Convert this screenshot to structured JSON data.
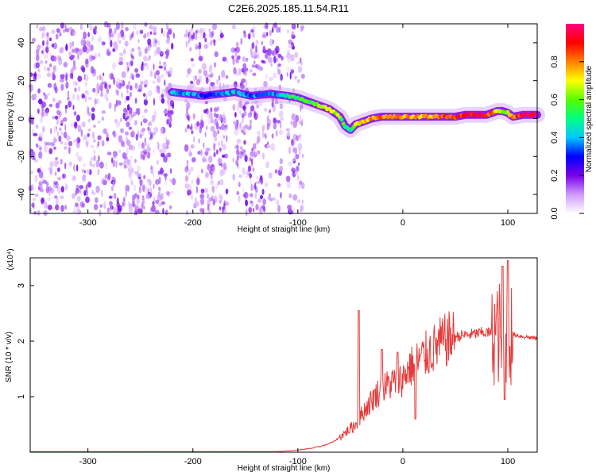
{
  "chart_data": [
    {
      "type": "heatmap",
      "title": "C2E6.2025.185.11.54.R11",
      "xlabel": "Height of straight line (km)",
      "ylabel": "Frequency (Hz)",
      "xlim": [
        -355,
        128
      ],
      "ylim": [
        -50,
        50
      ],
      "x_ticks": [
        -300,
        -200,
        -100,
        0,
        100
      ],
      "y_ticks": [
        -40,
        -20,
        0,
        20,
        40
      ],
      "colorbar": {
        "label": "Normalized spectral amplitude",
        "range": [
          0,
          1
        ],
        "ticks": [
          0.0,
          0.2,
          0.4,
          0.6,
          0.8
        ],
        "colors": [
          "#ffffff",
          "#cf9bff",
          "#7a00e6",
          "#0000ff",
          "#00c8ff",
          "#00ff80",
          "#55ff00",
          "#ffff00",
          "#ff8000",
          "#ff0000",
          "#ff0080"
        ]
      },
      "noise_regions": [
        [
          -355,
          -218
        ],
        [
          -207,
          -167
        ],
        [
          -162,
          -115
        ],
        [
          -110,
          -95
        ]
      ],
      "signal_track": [
        {
          "x": -220,
          "y": 14,
          "a": 0.35
        },
        {
          "x": -205,
          "y": 13,
          "a": 0.4
        },
        {
          "x": -190,
          "y": 12,
          "a": 0.3
        },
        {
          "x": -175,
          "y": 13,
          "a": 0.35
        },
        {
          "x": -160,
          "y": 14,
          "a": 0.4
        },
        {
          "x": -145,
          "y": 12,
          "a": 0.35
        },
        {
          "x": -125,
          "y": 13,
          "a": 0.35
        },
        {
          "x": -110,
          "y": 12,
          "a": 0.45
        },
        {
          "x": -100,
          "y": 11,
          "a": 0.55
        },
        {
          "x": -90,
          "y": 9,
          "a": 0.6
        },
        {
          "x": -80,
          "y": 7,
          "a": 0.65
        },
        {
          "x": -70,
          "y": 5,
          "a": 0.65
        },
        {
          "x": -60,
          "y": 1,
          "a": 0.6
        },
        {
          "x": -55,
          "y": -4,
          "a": 0.55
        },
        {
          "x": -50,
          "y": -6,
          "a": 0.5
        },
        {
          "x": -45,
          "y": -3,
          "a": 0.7
        },
        {
          "x": -40,
          "y": -2,
          "a": 0.75
        },
        {
          "x": -35,
          "y": -1,
          "a": 0.75
        },
        {
          "x": -30,
          "y": 0,
          "a": 0.8
        },
        {
          "x": -20,
          "y": 1,
          "a": 0.8
        },
        {
          "x": -10,
          "y": 1,
          "a": 0.8
        },
        {
          "x": 0,
          "y": 1,
          "a": 0.8
        },
        {
          "x": 10,
          "y": 1,
          "a": 0.75
        },
        {
          "x": 20,
          "y": 1,
          "a": 0.75
        },
        {
          "x": 30,
          "y": 1,
          "a": 0.8
        },
        {
          "x": 40,
          "y": 1,
          "a": 0.85
        },
        {
          "x": 50,
          "y": 1,
          "a": 0.85
        },
        {
          "x": 60,
          "y": 2,
          "a": 0.9
        },
        {
          "x": 70,
          "y": 2,
          "a": 0.9
        },
        {
          "x": 80,
          "y": 2,
          "a": 0.9
        },
        {
          "x": 90,
          "y": 4,
          "a": 0.7
        },
        {
          "x": 95,
          "y": 4,
          "a": 0.6
        },
        {
          "x": 100,
          "y": 3,
          "a": 0.65
        },
        {
          "x": 105,
          "y": 1,
          "a": 0.8
        },
        {
          "x": 115,
          "y": 2,
          "a": 0.95
        },
        {
          "x": 128,
          "y": 2,
          "a": 0.95
        }
      ]
    },
    {
      "type": "line",
      "xlabel": "Height of straight line (km)",
      "ylabel": "SNR (10 * v/v)",
      "scale_label": "(x10⁴)",
      "xlim": [
        -355,
        128
      ],
      "ylim": [
        0,
        3.5
      ],
      "x_ticks": [
        -300,
        -200,
        -100,
        0,
        100
      ],
      "y_ticks": [
        1,
        2,
        3
      ],
      "line_color": "#e83a3a",
      "baseline": [
        {
          "x": -355,
          "y": 0.01
        },
        {
          "x": -120,
          "y": 0.01
        },
        {
          "x": -105,
          "y": 0.03
        },
        {
          "x": -90,
          "y": 0.06
        },
        {
          "x": -75,
          "y": 0.12
        },
        {
          "x": -65,
          "y": 0.2
        },
        {
          "x": -55,
          "y": 0.35
        },
        {
          "x": -45,
          "y": 0.5
        },
        {
          "x": -35,
          "y": 0.8
        },
        {
          "x": -25,
          "y": 1.05
        },
        {
          "x": -15,
          "y": 1.2
        },
        {
          "x": -5,
          "y": 1.3
        },
        {
          "x": 0,
          "y": 1.32
        },
        {
          "x": 5,
          "y": 1.5
        },
        {
          "x": 15,
          "y": 1.65
        },
        {
          "x": 25,
          "y": 1.8
        },
        {
          "x": 35,
          "y": 1.95
        },
        {
          "x": 45,
          "y": 2.05
        },
        {
          "x": 55,
          "y": 2.1
        },
        {
          "x": 65,
          "y": 2.12
        },
        {
          "x": 75,
          "y": 2.15
        },
        {
          "x": 85,
          "y": 2.15
        },
        {
          "x": 95,
          "y": 2.15
        },
        {
          "x": 105,
          "y": 2.12
        },
        {
          "x": 115,
          "y": 2.08
        },
        {
          "x": 128,
          "y": 2.05
        }
      ],
      "peaks": [
        {
          "x": -42,
          "y": 2.55
        },
        {
          "x": -20,
          "y": 1.85
        },
        {
          "x": 12,
          "y": 0.6
        },
        {
          "x": 95,
          "y": 3.35
        },
        {
          "x": 100,
          "y": 3.45
        },
        {
          "x": 97,
          "y": 0.95
        },
        {
          "x": -5,
          "y": 1.8
        }
      ]
    }
  ]
}
